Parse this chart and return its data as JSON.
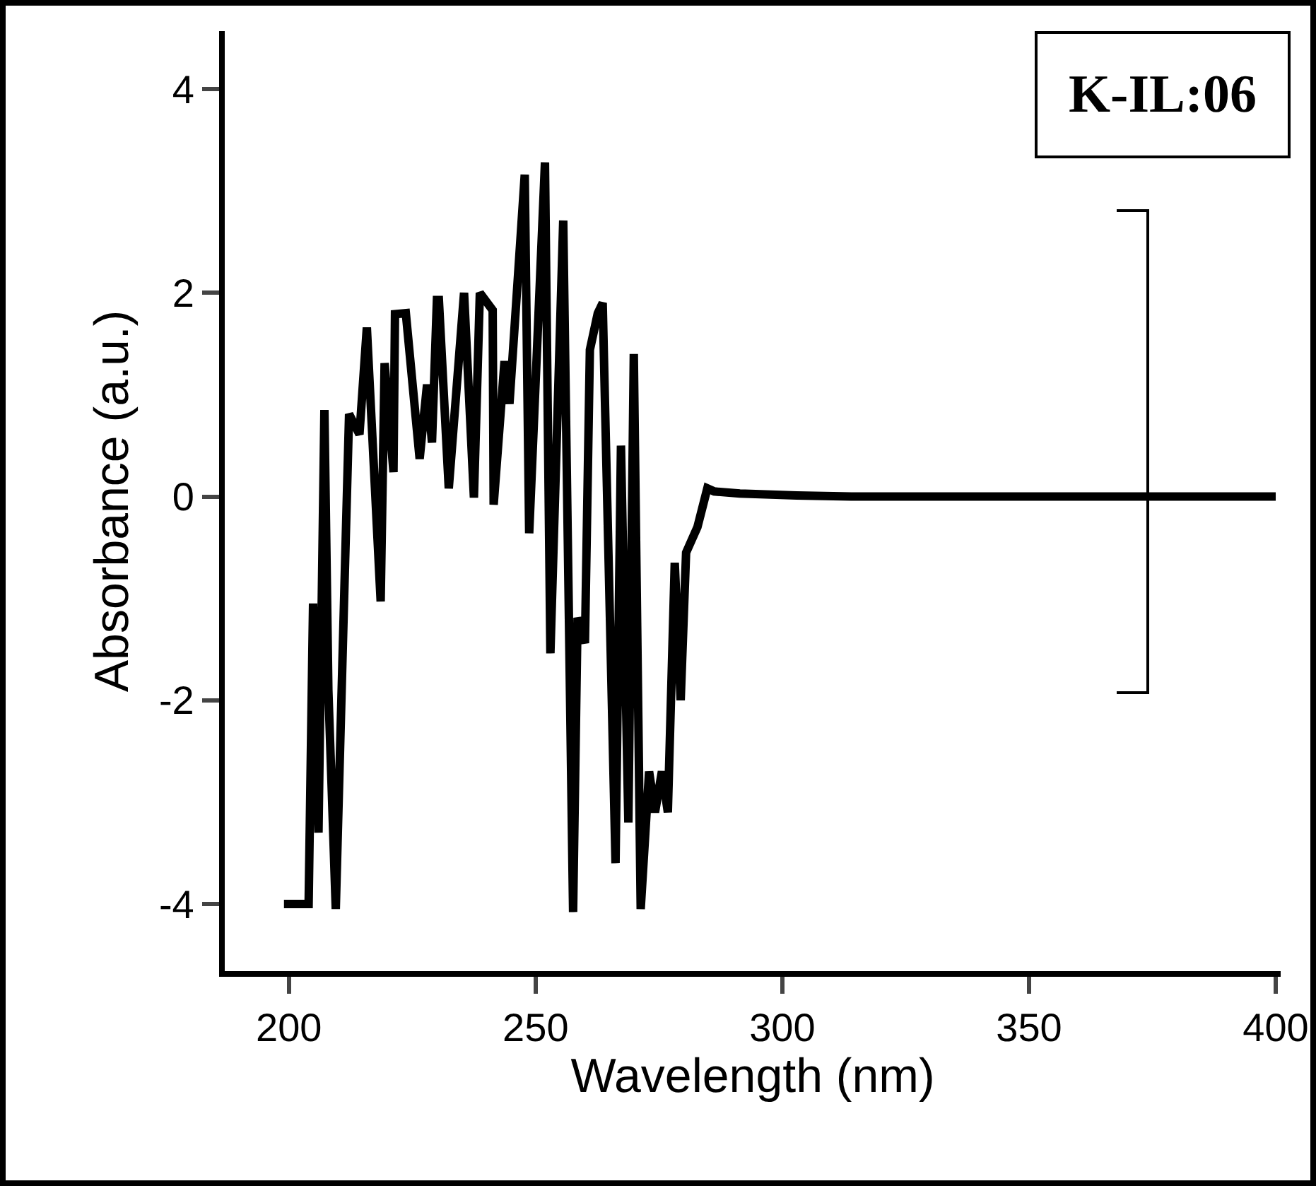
{
  "chart_data": {
    "type": "line",
    "xlabel": "Wavelength (nm)",
    "ylabel": "Absorbance (a.u.)",
    "annotations": [
      "K-IL:06"
    ],
    "x": [
      199,
      200,
      201,
      202,
      203,
      204,
      204.9,
      206,
      207.2,
      208,
      209.5,
      212.2,
      214.3,
      215.8,
      218.6,
      219.4,
      221.2,
      221.5,
      223.7,
      226.5,
      228,
      229,
      230,
      230.4,
      232.4,
      235.5,
      237.5,
      238.7,
      241.3,
      241.5,
      243.7,
      244.7,
      247.8,
      248.7,
      251.9,
      253,
      255.6,
      257.6,
      258.5,
      260,
      261,
      262.6,
      263.6,
      266.2,
      267.3,
      268.8,
      269.9,
      271.3,
      273,
      274.2,
      275.6,
      276.8,
      278.2,
      279.4,
      280.5,
      282.8,
      284.8,
      286.2,
      291.4,
      302.9,
      314,
      340,
      370,
      400
    ],
    "series": [
      {
        "color": "#000000",
        "values": [
          -4,
          -4,
          -4,
          -4,
          -4,
          -4,
          -1.05,
          -3.3,
          0.85,
          -1.9,
          -4.05,
          0.81,
          0.61,
          1.66,
          -1.03,
          1.31,
          0.24,
          1.79,
          1.8,
          0.37,
          1.1,
          0.53,
          1.93,
          1.93,
          0.08,
          2.0,
          -0.01,
          2.0,
          1.83,
          -0.08,
          1.33,
          0.91,
          3.16,
          -0.36,
          3.28,
          -1.54,
          2.71,
          -4.08,
          -1.19,
          -1.44,
          1.44,
          1.8,
          1.9,
          -3.6,
          0.5,
          -3.2,
          1.4,
          -4.05,
          -2.7,
          -3.1,
          -2.7,
          -3.1,
          -0.65,
          -2.0,
          -0.55,
          -0.3,
          0.08,
          0.05,
          0.03,
          0.01,
          0,
          0,
          0,
          0
        ]
      }
    ],
    "xlim": [
      187,
      401
    ],
    "ylim": [
      -4.66,
      4.57
    ],
    "xticks": [
      200,
      250,
      300,
      350,
      400
    ],
    "yticks": [
      -4,
      -2,
      0,
      2,
      4
    ],
    "grid": false,
    "marker": "none",
    "line_style": "solid"
  }
}
